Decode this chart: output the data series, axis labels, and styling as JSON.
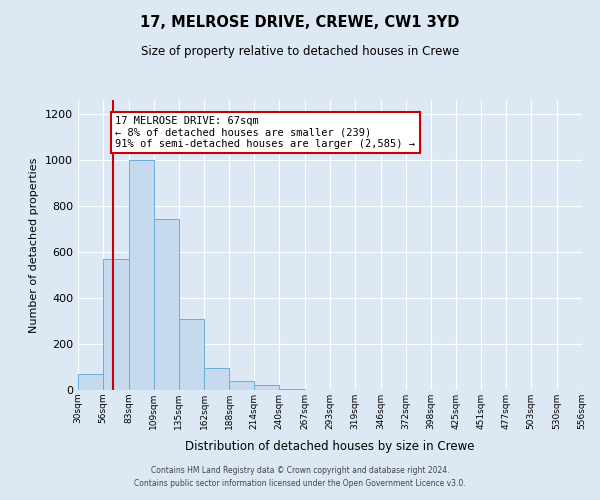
{
  "title": "17, MELROSE DRIVE, CREWE, CW1 3YD",
  "subtitle": "Size of property relative to detached houses in Crewe",
  "xlabel": "Distribution of detached houses by size in Crewe",
  "ylabel": "Number of detached properties",
  "bin_edges": [
    30,
    56,
    83,
    109,
    135,
    162,
    188,
    214,
    240,
    267,
    293,
    319,
    346,
    372,
    398,
    425,
    451,
    477,
    503,
    530,
    556
  ],
  "bar_heights": [
    70,
    570,
    1000,
    745,
    310,
    95,
    38,
    20,
    5,
    0,
    0,
    0,
    0,
    0,
    0,
    0,
    0,
    0,
    0,
    0
  ],
  "bar_color": "#c5d9ef",
  "bar_edge_color": "#6aaed6",
  "vline_color": "#cc0000",
  "vline_x": 67,
  "annotation_title": "17 MELROSE DRIVE: 67sqm",
  "annotation_line1": "← 8% of detached houses are smaller (239)",
  "annotation_line2": "91% of semi-detached houses are larger (2,585) →",
  "annotation_box_color": "#ffffff",
  "annotation_box_edge": "#cc0000",
  "ylim": [
    0,
    1260
  ],
  "yticks": [
    0,
    200,
    400,
    600,
    800,
    1000,
    1200
  ],
  "xlim_left": 30,
  "xlim_right": 556,
  "background_color": "#dde8f5",
  "plot_bg_color": "#dde8f5",
  "grid_color": "#ffffff",
  "footer1": "Contains HM Land Registry data © Crown copyright and database right 2024.",
  "footer2": "Contains public sector information licensed under the Open Government Licence v3.0."
}
